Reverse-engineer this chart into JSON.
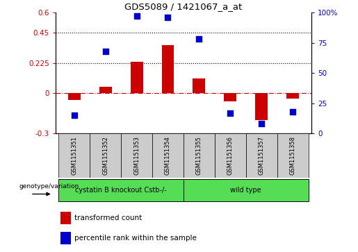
{
  "title": "GDS5089 / 1421067_a_at",
  "samples": [
    "GSM1151351",
    "GSM1151352",
    "GSM1151353",
    "GSM1151354",
    "GSM1151355",
    "GSM1151356",
    "GSM1151357",
    "GSM1151358"
  ],
  "transformed_count": [
    -0.05,
    0.05,
    0.235,
    0.36,
    0.11,
    -0.06,
    -0.2,
    -0.04
  ],
  "percentile_rank": [
    15,
    68,
    97,
    96,
    78,
    17,
    8,
    18
  ],
  "ylim_left": [
    -0.3,
    0.6
  ],
  "ylim_right": [
    0,
    100
  ],
  "yticks_left": [
    -0.3,
    0.0,
    0.225,
    0.45,
    0.6
  ],
  "ytick_labels_left": [
    "-0.3",
    "0",
    "0.225",
    "0.45",
    "0.6"
  ],
  "yticks_right": [
    0,
    25,
    50,
    75,
    100
  ],
  "ytick_labels_right": [
    "0",
    "25",
    "50",
    "75",
    "100%"
  ],
  "hlines": [
    0.45,
    0.225
  ],
  "bar_color": "#cc0000",
  "dot_color": "#0000cc",
  "zero_line_color": "#cc0000",
  "group1_label": "cystatin B knockout Cstb-/-",
  "group2_label": "wild type",
  "group1_indices": [
    0,
    1,
    2,
    3
  ],
  "group2_indices": [
    4,
    5,
    6,
    7
  ],
  "group_color": "#55dd55",
  "legend_bar_label": "transformed count",
  "legend_dot_label": "percentile rank within the sample",
  "genotype_label": "genotype/variation",
  "bar_width": 0.4,
  "dot_size": 30,
  "sample_box_color": "#cccccc",
  "fig_width": 5.15,
  "fig_height": 3.63
}
